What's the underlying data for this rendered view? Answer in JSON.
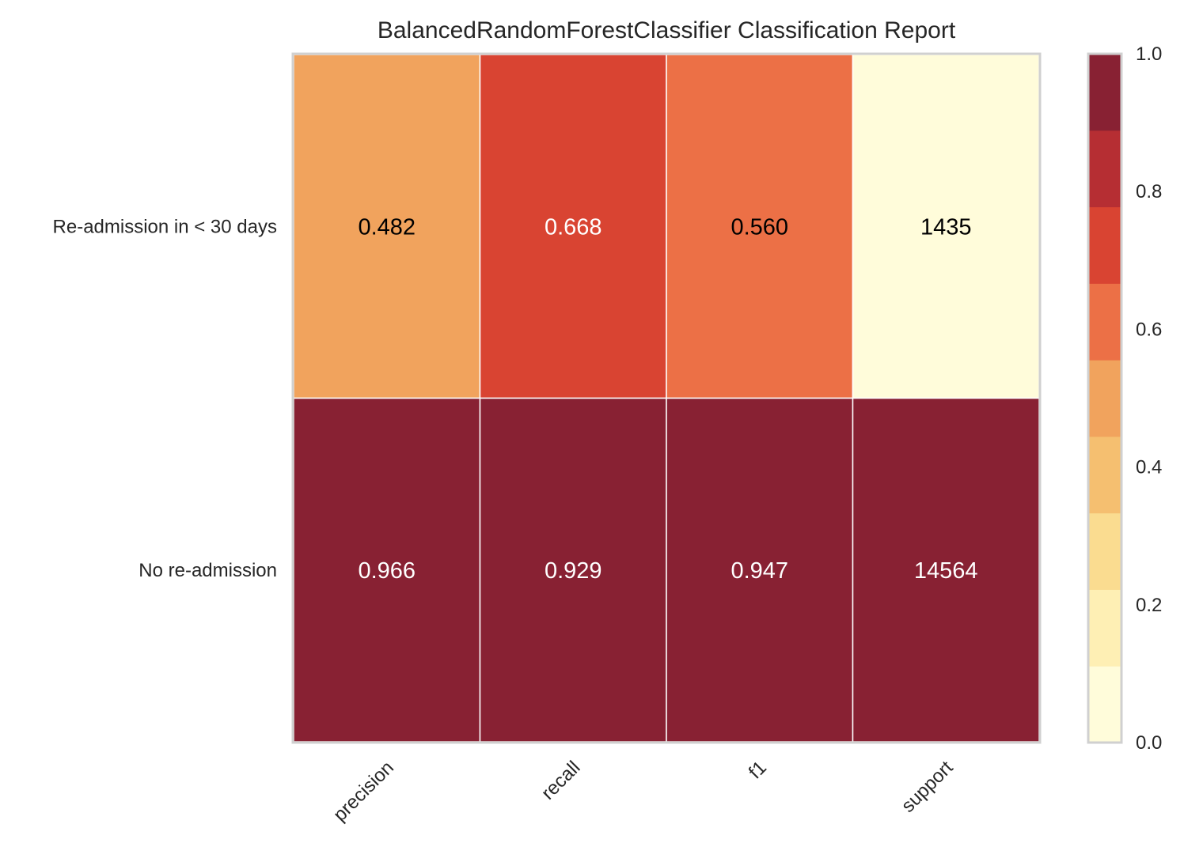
{
  "chart_data": {
    "type": "heatmap",
    "title": "BalancedRandomForestClassifier Classification Report",
    "columns": [
      "precision",
      "recall",
      "f1",
      "support"
    ],
    "rows": [
      "Re-admission in < 30 days",
      "No re-admission"
    ],
    "values": [
      [
        0.482,
        0.668,
        0.56,
        1435
      ],
      [
        0.966,
        0.929,
        0.947,
        14564
      ]
    ],
    "cell_labels": [
      [
        "0.482",
        "0.668",
        "0.560",
        "1435"
      ],
      [
        "0.966",
        "0.929",
        "0.947",
        "14564"
      ]
    ],
    "color_values": [
      [
        0.482,
        0.668,
        0.56,
        0.0
      ],
      [
        0.966,
        0.929,
        0.947,
        1.0
      ]
    ],
    "colorbar": {
      "min": 0.0,
      "max": 1.0,
      "ticks": [
        "0.0",
        "0.2",
        "0.4",
        "0.6",
        "0.8",
        "1.0"
      ],
      "colors": [
        "#fffcda",
        "#feefb4",
        "#fadc90",
        "#f5bf70",
        "#f1a35d",
        "#ec7046",
        "#d94432",
        "#b62e33",
        "#882133"
      ]
    }
  }
}
